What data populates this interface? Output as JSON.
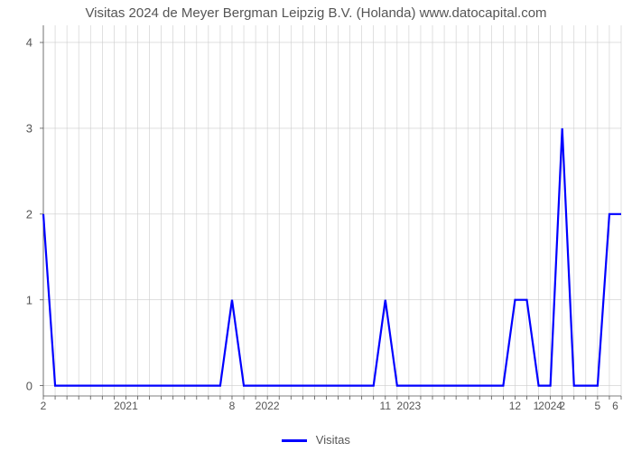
{
  "chart": {
    "type": "line",
    "title": "Visitas 2024 de Meyer Bergman Leipzig B.V. (Holanda) www.datocapital.com",
    "title_fontsize": 15,
    "title_color": "#555555",
    "background_color": "#ffffff",
    "line_color": "#0000ff",
    "line_width": 2.2,
    "grid_color": "#cccccc",
    "grid_width": 0.6,
    "axis_color": "#555555",
    "axis_width": 0.8,
    "label_color": "#555555",
    "label_fontsize": 13,
    "xlim": [
      0,
      49
    ],
    "ylim": [
      -0.12,
      4.2
    ],
    "y_ticks": [
      0,
      1,
      2,
      3,
      4
    ],
    "x_ticks": [
      {
        "pos": 0,
        "label": "2"
      },
      {
        "pos": 7,
        "label": "2021"
      },
      {
        "pos": 16,
        "label": "8"
      },
      {
        "pos": 19,
        "label": "2022"
      },
      {
        "pos": 29,
        "label": "11"
      },
      {
        "pos": 31,
        "label": "2023"
      },
      {
        "pos": 40,
        "label": "12"
      },
      {
        "pos": 41.8,
        "label": "1"
      },
      {
        "pos": 43,
        "label": "2024"
      },
      {
        "pos": 44,
        "label": "2"
      },
      {
        "pos": 47,
        "label": "5"
      },
      {
        "pos": 48.5,
        "label": "6"
      }
    ],
    "x_minor_tick_step": 1,
    "data": [
      {
        "x": 0,
        "y": 2
      },
      {
        "x": 1,
        "y": 0
      },
      {
        "x": 15,
        "y": 0
      },
      {
        "x": 16,
        "y": 1
      },
      {
        "x": 17,
        "y": 0
      },
      {
        "x": 28,
        "y": 0
      },
      {
        "x": 29,
        "y": 1
      },
      {
        "x": 30,
        "y": 0
      },
      {
        "x": 39,
        "y": 0
      },
      {
        "x": 40,
        "y": 1
      },
      {
        "x": 41,
        "y": 1
      },
      {
        "x": 42,
        "y": 0
      },
      {
        "x": 43,
        "y": 0
      },
      {
        "x": 44,
        "y": 3
      },
      {
        "x": 45,
        "y": 0
      },
      {
        "x": 47,
        "y": 0
      },
      {
        "x": 48,
        "y": 2
      },
      {
        "x": 49,
        "y": 2
      }
    ],
    "legend": {
      "label": "Visitas",
      "color": "#0000ff"
    }
  }
}
